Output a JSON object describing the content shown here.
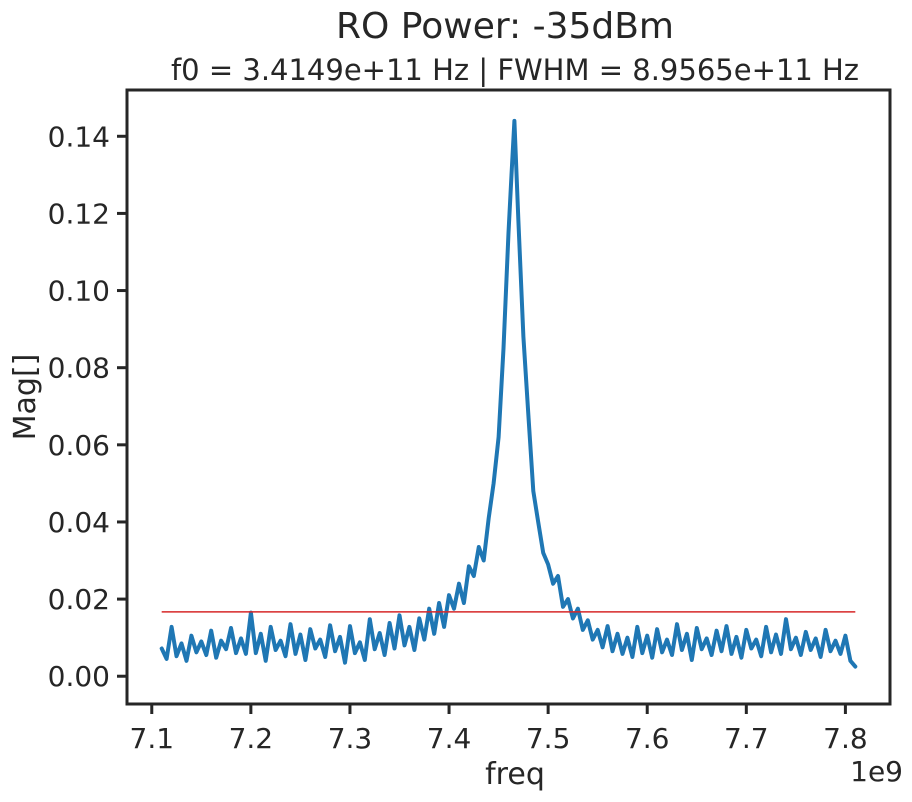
{
  "chart_data": {
    "type": "line",
    "title": "RO Power: -35dBm",
    "subtitle": "f0 = 3.4149e+11 Hz | FWHM = 8.9565e+11 Hz",
    "xlabel": "freq",
    "ylabel": "Mag[]",
    "x_offset_label": "1e9",
    "xlim": [
      7.075,
      7.845
    ],
    "ylim": [
      -0.0072,
      0.152
    ],
    "x_ticks": [
      7.1,
      7.2,
      7.3,
      7.4,
      7.5,
      7.6,
      7.7,
      7.8
    ],
    "x_tick_labels": [
      "7.1",
      "7.2",
      "7.3",
      "7.4",
      "7.5",
      "7.6",
      "7.7",
      "7.8"
    ],
    "y_ticks": [
      0.0,
      0.02,
      0.04,
      0.06,
      0.08,
      0.1,
      0.12,
      0.14
    ],
    "y_tick_labels": [
      "0.00",
      "0.02",
      "0.04",
      "0.06",
      "0.08",
      "0.10",
      "0.12",
      "0.14"
    ],
    "grid": false,
    "series": [
      {
        "color": "#1f77b4",
        "x": [
          7.11,
          7.115,
          7.12,
          7.125,
          7.13,
          7.135,
          7.14,
          7.145,
          7.15,
          7.155,
          7.16,
          7.165,
          7.17,
          7.175,
          7.18,
          7.185,
          7.19,
          7.195,
          7.2,
          7.205,
          7.21,
          7.215,
          7.22,
          7.225,
          7.23,
          7.235,
          7.24,
          7.245,
          7.25,
          7.255,
          7.26,
          7.265,
          7.27,
          7.275,
          7.28,
          7.285,
          7.29,
          7.295,
          7.3,
          7.305,
          7.31,
          7.315,
          7.32,
          7.325,
          7.33,
          7.335,
          7.34,
          7.345,
          7.35,
          7.355,
          7.36,
          7.365,
          7.37,
          7.375,
          7.38,
          7.385,
          7.39,
          7.395,
          7.4,
          7.405,
          7.41,
          7.415,
          7.42,
          7.425,
          7.43,
          7.435,
          7.44,
          7.445,
          7.45,
          7.455,
          7.46,
          7.463,
          7.466,
          7.47,
          7.475,
          7.48,
          7.485,
          7.49,
          7.495,
          7.5,
          7.505,
          7.51,
          7.515,
          7.52,
          7.525,
          7.53,
          7.535,
          7.54,
          7.545,
          7.55,
          7.555,
          7.56,
          7.565,
          7.57,
          7.575,
          7.58,
          7.585,
          7.59,
          7.595,
          7.6,
          7.605,
          7.61,
          7.615,
          7.62,
          7.625,
          7.63,
          7.635,
          7.64,
          7.645,
          7.65,
          7.655,
          7.66,
          7.665,
          7.67,
          7.675,
          7.68,
          7.685,
          7.69,
          7.695,
          7.7,
          7.705,
          7.71,
          7.715,
          7.72,
          7.725,
          7.73,
          7.735,
          7.74,
          7.745,
          7.75,
          7.755,
          7.76,
          7.765,
          7.77,
          7.775,
          7.78,
          7.785,
          7.79,
          7.795,
          7.8,
          7.805,
          7.81
        ],
        "y": [
          0.0072,
          0.0045,
          0.0128,
          0.0052,
          0.0085,
          0.004,
          0.0105,
          0.0062,
          0.009,
          0.0055,
          0.0118,
          0.0048,
          0.0092,
          0.007,
          0.0125,
          0.006,
          0.0098,
          0.0058,
          0.0165,
          0.006,
          0.011,
          0.004,
          0.0128,
          0.0068,
          0.0092,
          0.0052,
          0.0135,
          0.0058,
          0.0108,
          0.0042,
          0.0122,
          0.0072,
          0.0095,
          0.005,
          0.0132,
          0.0065,
          0.0102,
          0.0035,
          0.013,
          0.006,
          0.0088,
          0.0042,
          0.0148,
          0.007,
          0.0112,
          0.0055,
          0.0138,
          0.0072,
          0.0158,
          0.008,
          0.0128,
          0.0068,
          0.015,
          0.0095,
          0.0175,
          0.011,
          0.019,
          0.0128,
          0.021,
          0.0175,
          0.024,
          0.019,
          0.0285,
          0.026,
          0.0335,
          0.03,
          0.041,
          0.05,
          0.062,
          0.085,
          0.115,
          0.13,
          0.144,
          0.118,
          0.088,
          0.068,
          0.048,
          0.04,
          0.032,
          0.029,
          0.024,
          0.026,
          0.018,
          0.02,
          0.015,
          0.0175,
          0.012,
          0.0145,
          0.0095,
          0.012,
          0.0075,
          0.013,
          0.0065,
          0.011,
          0.0058,
          0.01,
          0.005,
          0.0128,
          0.006,
          0.0105,
          0.0048,
          0.0122,
          0.0062,
          0.0095,
          0.0055,
          0.0135,
          0.0068,
          0.011,
          0.0042,
          0.0125,
          0.007,
          0.0098,
          0.0055,
          0.0118,
          0.0065,
          0.013,
          0.0058,
          0.0102,
          0.0048,
          0.012,
          0.0072,
          0.0095,
          0.0052,
          0.0128,
          0.0062,
          0.0108,
          0.0058,
          0.0148,
          0.007,
          0.01,
          0.0055,
          0.0115,
          0.0068,
          0.0098,
          0.005,
          0.012,
          0.0065,
          0.0092,
          0.0058,
          0.0105,
          0.004,
          0.0025
        ]
      }
    ],
    "reference_line": {
      "y": 0.0167,
      "x_range": [
        7.11,
        7.81
      ],
      "color": "#d62728"
    }
  }
}
